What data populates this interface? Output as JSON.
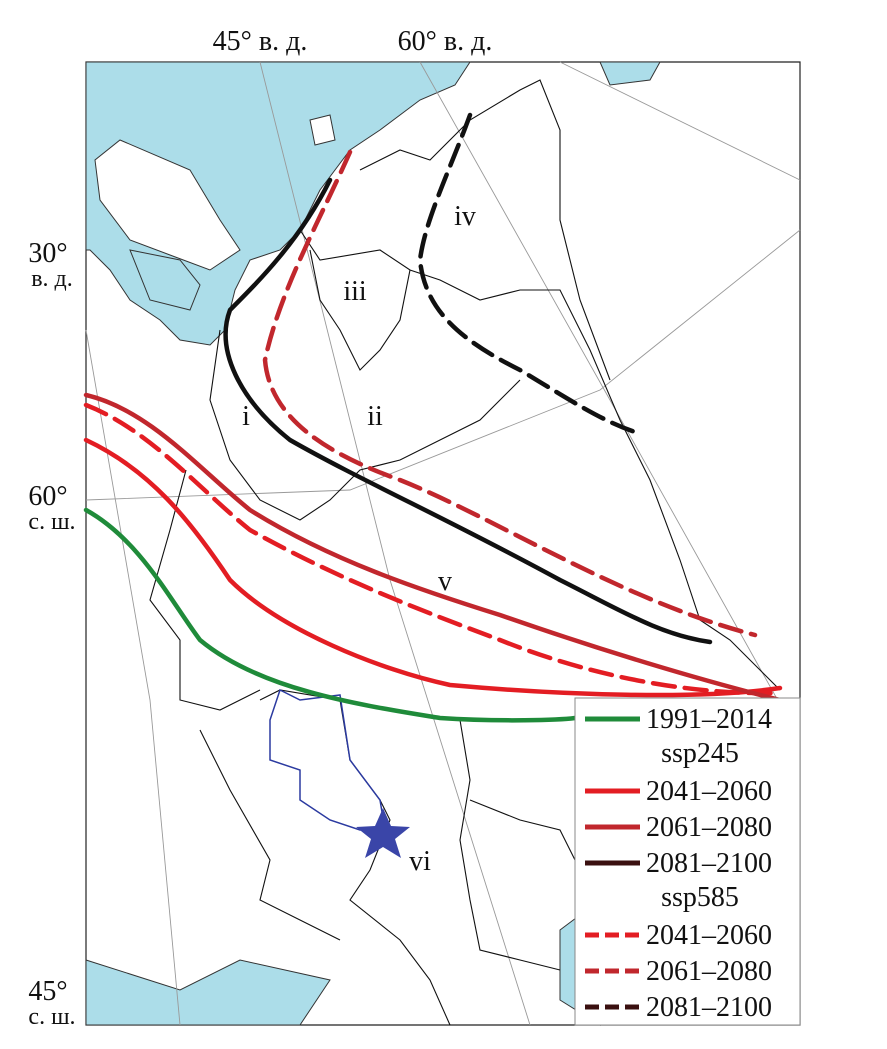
{
  "graticule_labels": {
    "top": [
      "45° в. д.",
      "60° в. д."
    ],
    "left": [
      {
        "degree": "30°",
        "suffix": "в. д."
      },
      {
        "degree": "60°",
        "suffix": "с. ш."
      },
      {
        "degree": "45°",
        "suffix": "с. ш."
      }
    ]
  },
  "regions": [
    "i",
    "ii",
    "iii",
    "iv",
    "v",
    "vi"
  ],
  "legend": {
    "items": [
      {
        "label": "1991–2014",
        "color": "#1f8b3a",
        "dashed": false
      },
      {
        "heading": "ssp245"
      },
      {
        "label": "2041–2060",
        "color": "#e31d23",
        "dashed": false
      },
      {
        "label": "2061–2080",
        "color": "#c1272d",
        "dashed": false
      },
      {
        "label": "2081–2100",
        "color": "#3a1010",
        "dashed": false
      },
      {
        "heading": "ssp585"
      },
      {
        "label": "2041–2060",
        "color": "#e31d23",
        "dashed": true
      },
      {
        "label": "2061–2080",
        "color": "#c1272d",
        "dashed": true
      },
      {
        "label": "2081–2100",
        "color": "#3a1010",
        "dashed": true
      }
    ]
  }
}
